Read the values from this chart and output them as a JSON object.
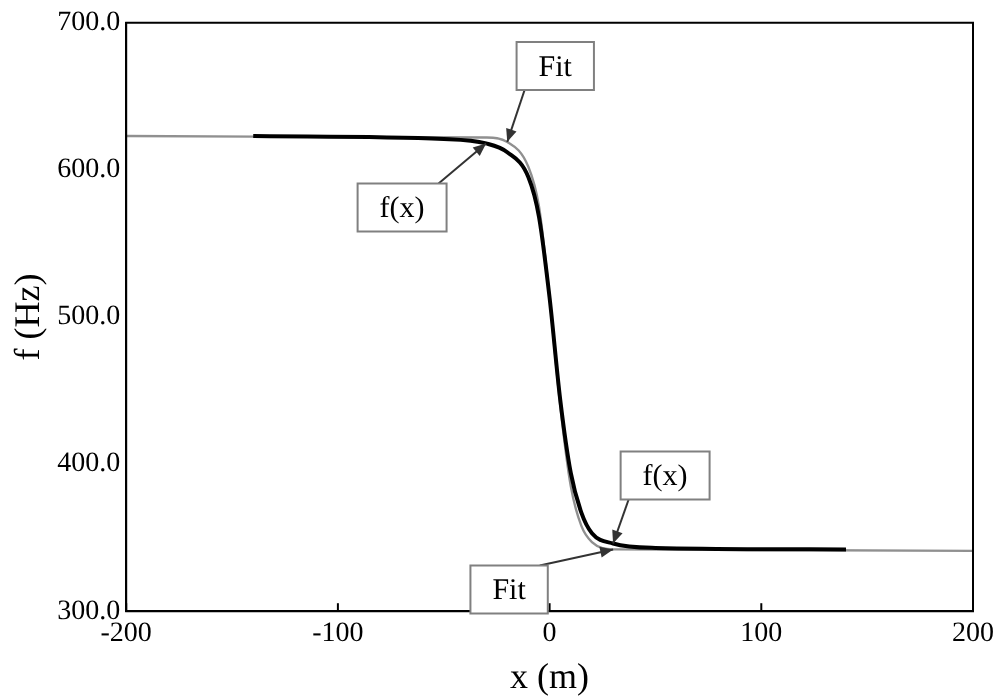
{
  "chart_data": {
    "type": "line",
    "xlabel": "x (m)",
    "ylabel": "f (Hz)",
    "xlim": [
      -200,
      200
    ],
    "xticks": [
      -200,
      -100,
      0,
      100,
      200
    ],
    "ylim": [
      300,
      700
    ],
    "yticks": [
      {
        "value": 300,
        "label": "300.0"
      },
      {
        "value": 400,
        "label": "400.0"
      },
      {
        "value": 500,
        "label": "500.0"
      },
      {
        "value": 600,
        "label": "600.0"
      },
      {
        "value": 700,
        "label": "700.0"
      }
    ],
    "grid": false,
    "legend": false,
    "marker": "none",
    "line_style": "solid",
    "series": [
      {
        "name": "f(x)",
        "color": "#000000",
        "x": [
          -140,
          -50,
          -30,
          -20,
          -10,
          -5,
          0,
          5,
          10,
          15,
          20,
          30,
          50,
          140
        ],
        "values": [
          623,
          621,
          618,
          612,
          595,
          568,
          513,
          444,
          394,
          367,
          353,
          346,
          343,
          342
        ]
      },
      {
        "name": "Fit",
        "color": "#909090",
        "x": [
          -200,
          -30,
          -20,
          -10,
          -5,
          0,
          5,
          10,
          15,
          20,
          30,
          200
        ],
        "values": [
          623,
          622,
          619,
          602,
          575,
          513,
          440,
          385,
          358,
          347,
          342,
          341
        ]
      }
    ]
  }
}
